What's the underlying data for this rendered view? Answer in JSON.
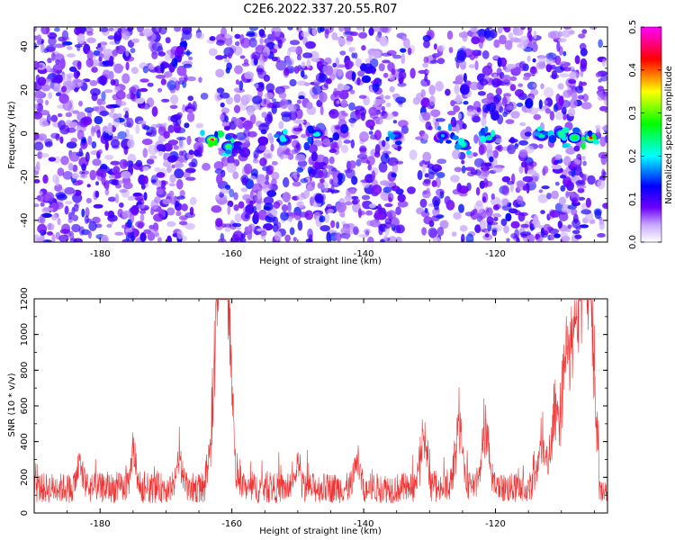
{
  "title": "C2E6.2022.337.20.55.R07",
  "colors": {
    "signal": "#ee3333",
    "axis": "#000000"
  },
  "chart_data": [
    {
      "type": "heatmap",
      "xlabel": "Height of straight line (km)",
      "ylabel": "Frequency (Hz)",
      "xlim": [
        -190,
        -103
      ],
      "ylim": [
        -50,
        49
      ],
      "xticks": [
        -180,
        -160,
        -140,
        -120
      ],
      "yticks": [
        -40,
        -20,
        0,
        20,
        40
      ],
      "xtick_labels": [
        "-180",
        "-160",
        "-140",
        "-120"
      ],
      "ytick_labels": [
        "-40",
        "-20",
        "0",
        "20",
        "40"
      ],
      "gaps_x": [
        [
          -166,
          -162
        ],
        [
          -134,
          -131
        ],
        [
          -128,
          -126
        ],
        [
          -106,
          -104.5
        ]
      ],
      "hotspots": [
        {
          "x": -163,
          "f": -3,
          "value": 0.45
        },
        {
          "x": -160.5,
          "f": -6,
          "value": 0.3
        },
        {
          "x": -152,
          "f": -3,
          "value": 0.2
        },
        {
          "x": -147,
          "f": 0,
          "value": 0.2
        },
        {
          "x": -135,
          "f": -1,
          "value": 0.15
        },
        {
          "x": -128,
          "f": -1,
          "value": 0.18
        },
        {
          "x": -125,
          "f": -5,
          "value": 0.3
        },
        {
          "x": -121,
          "f": -2,
          "value": 0.25
        },
        {
          "x": -113,
          "f": -1,
          "value": 0.25
        },
        {
          "x": -110,
          "f": 0,
          "value": 0.3
        },
        {
          "x": -108,
          "f": -2,
          "value": 0.35
        },
        {
          "x": -105.5,
          "f": -2,
          "value": 0.45
        }
      ],
      "colorbar": {
        "label": "Normalized spectral amplitude",
        "range": [
          0.0,
          0.5
        ],
        "ticks": [
          0.0,
          0.1,
          0.2,
          0.3,
          0.4,
          0.5
        ],
        "tick_labels": [
          "0.0",
          "0.1",
          "0.2",
          "0.3",
          "0.4",
          "0.5"
        ],
        "colormap": [
          "#ffffff",
          "#6f00ff",
          "#0000ff",
          "#00ffff",
          "#00ff00",
          "#ffff00",
          "#ff0000",
          "#ff00ff"
        ]
      }
    },
    {
      "type": "line",
      "xlabel": "Height of straight line (km)",
      "ylabel": "SNR (10 * v/v)",
      "xlim": [
        -190,
        -103
      ],
      "ylim": [
        0,
        1200
      ],
      "xticks": [
        -180,
        -160,
        -140,
        -120
      ],
      "yticks": [
        0,
        200,
        400,
        600,
        800,
        1000,
        1200
      ],
      "xtick_labels": [
        "-180",
        "-160",
        "-140",
        "-120"
      ],
      "ytick_labels": [
        "0",
        "200",
        "400",
        "600",
        "800",
        "1000",
        "1200"
      ],
      "baseline": 140,
      "spikes": [
        {
          "x": -161.2,
          "y": 1190
        },
        {
          "x": -161.7,
          "y": 1000
        },
        {
          "x": -162.1,
          "y": 700
        },
        {
          "x": -160.6,
          "y": 620
        },
        {
          "x": -183,
          "y": 330
        },
        {
          "x": -175,
          "y": 370
        },
        {
          "x": -168,
          "y": 360
        },
        {
          "x": -150,
          "y": 330
        },
        {
          "x": -141,
          "y": 350
        },
        {
          "x": -131,
          "y": 520
        },
        {
          "x": -125.5,
          "y": 660
        },
        {
          "x": -121.5,
          "y": 620
        },
        {
          "x": -113,
          "y": 460
        },
        {
          "x": -111,
          "y": 580
        },
        {
          "x": -109.5,
          "y": 770
        },
        {
          "x": -108.5,
          "y": 820
        },
        {
          "x": -107.2,
          "y": 1030
        },
        {
          "x": -106.3,
          "y": 1160
        },
        {
          "x": -105.7,
          "y": 880
        }
      ]
    }
  ]
}
